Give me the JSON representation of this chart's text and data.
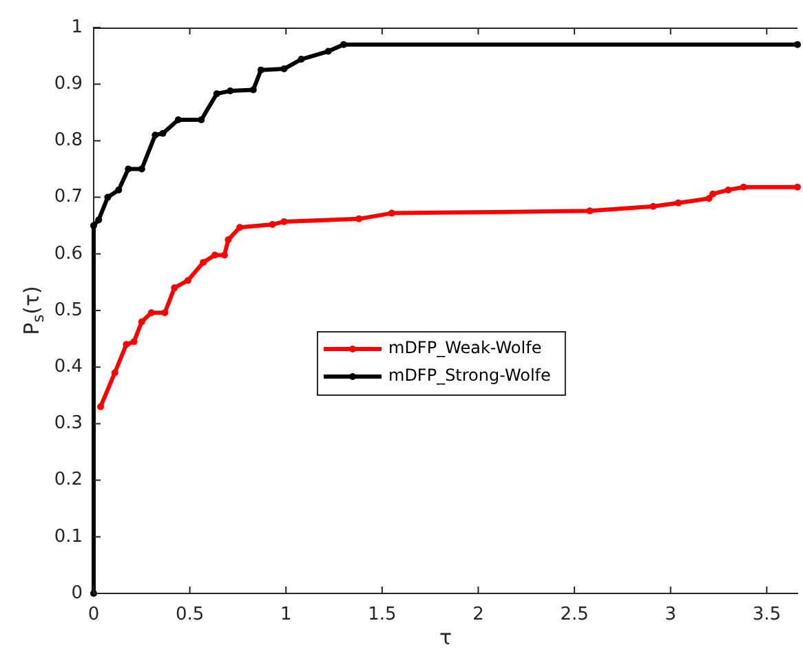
{
  "chart_data": {
    "type": "line",
    "xlabel": "τ",
    "ylabel": "P$_{s}$(τ)",
    "xlim": [
      0,
      3.66
    ],
    "xticks": [
      0,
      0.5,
      1,
      1.5,
      2,
      2.5,
      3,
      3.5
    ],
    "ylim": [
      0,
      1
    ],
    "yticks": [
      0,
      0.1,
      0.2,
      0.3,
      0.4,
      0.5,
      0.6,
      0.7,
      0.8,
      0.9,
      1
    ],
    "grid": false,
    "legend": "center",
    "marker": "circle",
    "line_style": "solid",
    "series": [
      {
        "name": "mDFP_Weak-Wolfe",
        "color": "#ff0000",
        "x": [
          0.036,
          0.11,
          0.17,
          0.21,
          0.25,
          0.3,
          0.37,
          0.42,
          0.49,
          0.57,
          0.63,
          0.68,
          0.7,
          0.76,
          0.93,
          0.99,
          1.38,
          1.55,
          2.58,
          2.91,
          3.04,
          3.2,
          3.22,
          3.3,
          3.38,
          3.66
        ],
        "values": [
          0.33,
          0.39,
          0.44,
          0.445,
          0.48,
          0.496,
          0.496,
          0.54,
          0.553,
          0.585,
          0.598,
          0.598,
          0.625,
          0.647,
          0.652,
          0.657,
          0.662,
          0.672,
          0.676,
          0.684,
          0.69,
          0.698,
          0.706,
          0.713,
          0.718,
          0.718
        ]
      },
      {
        "name": "mDFP_Strong-Wolfe",
        "color": "#000000",
        "x": [
          0,
          0,
          0.026,
          0.073,
          0.13,
          0.18,
          0.25,
          0.32,
          0.36,
          0.44,
          0.56,
          0.64,
          0.71,
          0.83,
          0.87,
          0.99,
          1.08,
          1.22,
          1.3,
          3.66
        ],
        "values": [
          0,
          0.65,
          0.66,
          0.7,
          0.713,
          0.75,
          0.75,
          0.81,
          0.813,
          0.837,
          0.837,
          0.883,
          0.888,
          0.89,
          0.925,
          0.927,
          0.944,
          0.958,
          0.97,
          0.97
        ]
      }
    ]
  }
}
